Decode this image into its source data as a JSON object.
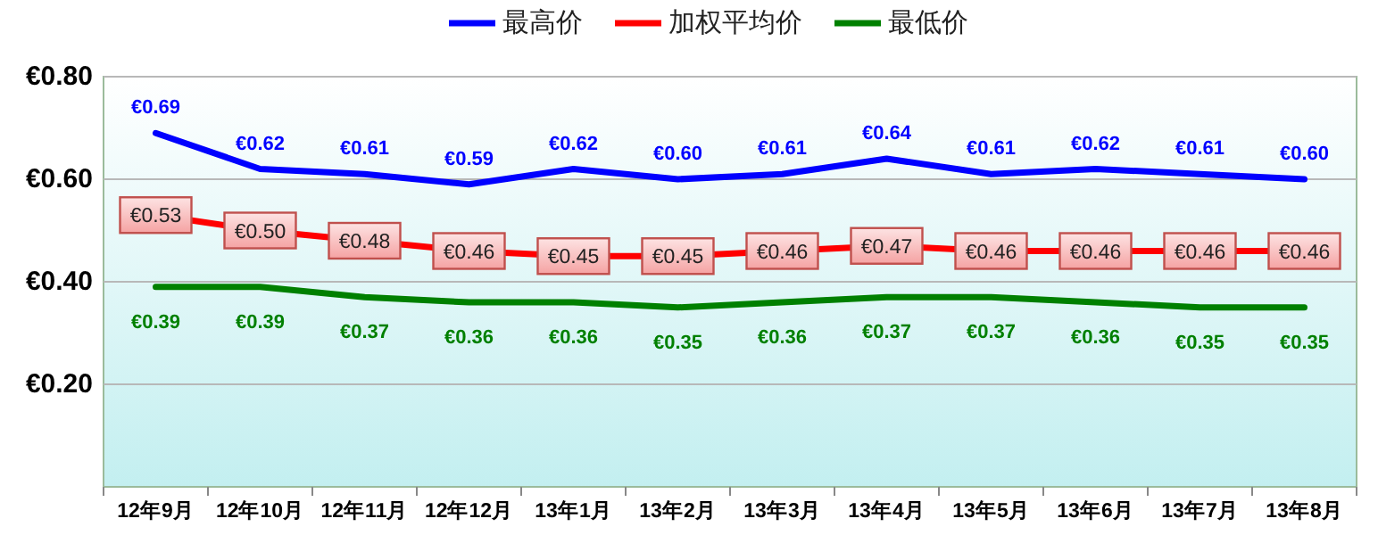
{
  "chart_data": {
    "type": "line",
    "categories": [
      "12年9月",
      "12年10月",
      "12年11月",
      "12年12月",
      "13年1月",
      "13年2月",
      "13年3月",
      "13年4月",
      "13年5月",
      "13年6月",
      "13年7月",
      "13年8月"
    ],
    "series": [
      {
        "name": "最高价",
        "color": "#0000ff",
        "values": [
          0.69,
          0.62,
          0.61,
          0.59,
          0.62,
          0.6,
          0.61,
          0.64,
          0.61,
          0.62,
          0.61,
          0.6
        ],
        "value_labels": [
          "€0.69",
          "€0.62",
          "€0.61",
          "€0.59",
          "€0.62",
          "€0.60",
          "€0.61",
          "€0.64",
          "€0.61",
          "€0.62",
          "€0.61",
          "€0.60"
        ]
      },
      {
        "name": "加权平均价",
        "color": "#ff0000",
        "marker": "square",
        "values": [
          0.53,
          0.5,
          0.48,
          0.46,
          0.45,
          0.45,
          0.46,
          0.47,
          0.46,
          0.46,
          0.46,
          0.46
        ],
        "value_labels": [
          "€0.53",
          "€0.50",
          "€0.48",
          "€0.46",
          "€0.45",
          "€0.45",
          "€0.46",
          "€0.47",
          "€0.46",
          "€0.46",
          "€0.46",
          "€0.46"
        ]
      },
      {
        "name": "最低价",
        "color": "#008000",
        "values": [
          0.39,
          0.39,
          0.37,
          0.36,
          0.36,
          0.35,
          0.36,
          0.37,
          0.37,
          0.36,
          0.35,
          0.35
        ],
        "value_labels": [
          "€0.39",
          "€0.39",
          "€0.37",
          "€0.36",
          "€0.36",
          "€0.35",
          "€0.36",
          "€0.37",
          "€0.37",
          "€0.36",
          "€0.35",
          "€0.35"
        ]
      }
    ],
    "ylim": [
      0,
      0.8
    ],
    "yticks": [
      {
        "value": 0.2,
        "label": "€0.20"
      },
      {
        "value": 0.4,
        "label": "€0.40"
      },
      {
        "value": 0.6,
        "label": "€0.60"
      },
      {
        "value": 0.8,
        "label": "€0.80"
      }
    ],
    "grid": "y",
    "legend": "top",
    "marker": "none",
    "line_style": "solid"
  }
}
